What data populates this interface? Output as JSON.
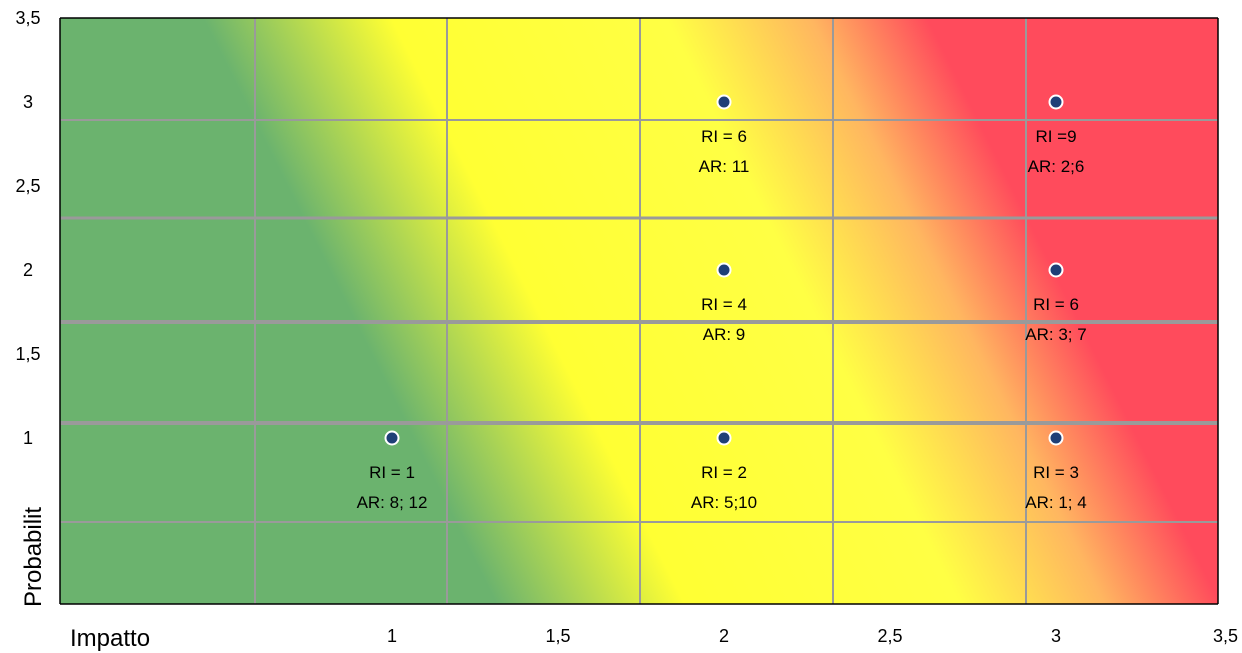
{
  "chart_data": {
    "type": "scatter",
    "title": "",
    "xlabel": "Impatto",
    "ylabel": "Probabilit",
    "xlim": [
      0,
      3.5
    ],
    "ylim": [
      0,
      3.5
    ],
    "x_ticks": [
      "1",
      "1,5",
      "2",
      "2,5",
      "3",
      "3,5"
    ],
    "y_ticks": [
      "3,5",
      "3",
      "2,5",
      "2",
      "1,5",
      "1"
    ],
    "grid": true,
    "background": "risk-gradient-green-yellow-red",
    "colors": {
      "green": "#6bb36e",
      "yellow": "#ffff33",
      "red": "#ff4b5c",
      "point": "#1f3f77",
      "grid": "#a0a0a0"
    },
    "points": [
      {
        "x": 1,
        "y": 1,
        "label1": "RI = 1",
        "label2": "AR:  8; 12"
      },
      {
        "x": 2,
        "y": 1,
        "label1": "RI = 2",
        "label2": "AR: 5;10"
      },
      {
        "x": 3,
        "y": 1,
        "label1": "RI = 3",
        "label2": "AR: 1; 4"
      },
      {
        "x": 2,
        "y": 2,
        "label1": "RI = 4",
        "label2": "AR: 9"
      },
      {
        "x": 3,
        "y": 2,
        "label1": "RI = 6",
        "label2": "AR: 3; 7"
      },
      {
        "x": 2,
        "y": 3,
        "label1": "RI = 6",
        "label2": "AR: 11"
      },
      {
        "x": 3,
        "y": 3,
        "label1": "RI =9",
        "label2": "AR: 2;6"
      }
    ]
  }
}
